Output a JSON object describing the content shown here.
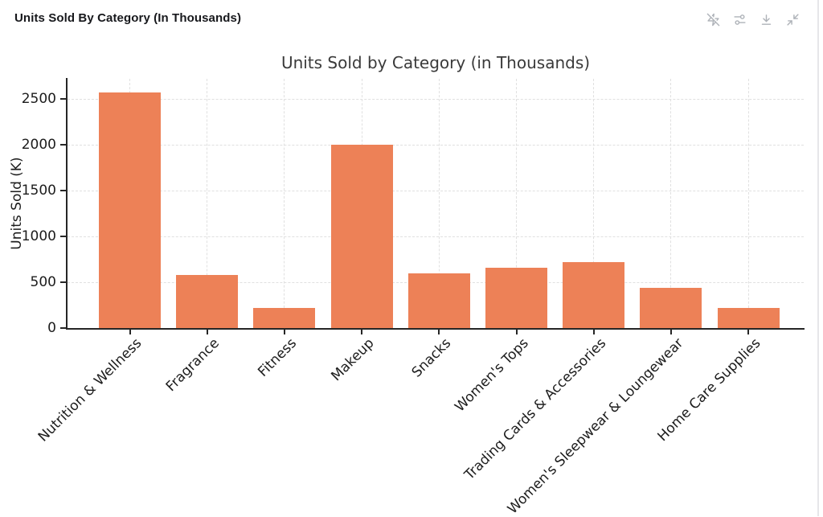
{
  "header": {
    "title": "Units Sold By Category (In Thousands)"
  },
  "toolbar": {
    "buttons": [
      {
        "icon": "zap-off-icon"
      },
      {
        "icon": "sliders-icon"
      },
      {
        "icon": "download-icon"
      },
      {
        "icon": "minimize-icon"
      }
    ]
  },
  "chart_data": {
    "type": "bar",
    "title": "Units Sold by Category (in Thousands)",
    "xlabel": "",
    "ylabel": "Units Sold (K)",
    "categories": [
      "Nutrition & Wellness",
      "Fragrance",
      "Fitness",
      "Makeup",
      "Snacks",
      "Women's Tops",
      "Trading Cards & Accessories",
      "Women's Sleepwear & Loungewear",
      "Home Care Supplies"
    ],
    "values": [
      2570,
      580,
      220,
      2000,
      595,
      660,
      720,
      440,
      215
    ],
    "yticks": [
      0,
      500,
      1000,
      1500,
      2000,
      2500
    ],
    "ylim": [
      0,
      2720
    ],
    "grid": true,
    "legend": false,
    "bar_color": "#ED8157",
    "label_rotation_deg": 45
  },
  "colors": {
    "accent": "#ED8157",
    "gridline": "#e0e0e0",
    "spine": "#262626",
    "icon": "#aeb2b8",
    "title_text": "#3a3a3a",
    "tick_text": "#1c1c1c"
  }
}
